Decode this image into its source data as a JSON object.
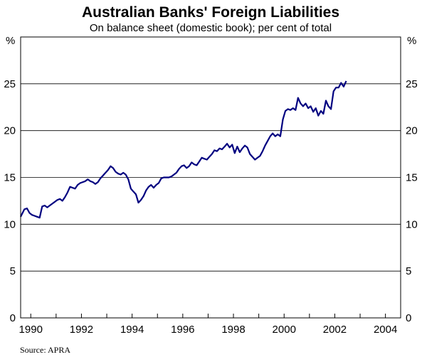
{
  "chart_data": {
    "type": "line",
    "title": "Australian Banks' Foreign Liabilities",
    "subtitle": "On balance sheet (domestic book); per cent of total",
    "unit_left": "%",
    "unit_right": "%",
    "source": "Source: APRA",
    "xlim": [
      1989.6,
      2004.6
    ],
    "ylim": [
      0,
      30
    ],
    "x_ticks": [
      1990,
      1992,
      1994,
      1996,
      1998,
      2000,
      2002,
      2004
    ],
    "x_tick_labels": [
      "1990",
      "1992",
      "1994",
      "1996",
      "1998",
      "2000",
      "2002",
      "2004"
    ],
    "y_ticks": [
      0,
      5,
      10,
      15,
      20,
      25
    ],
    "y_tick_labels": [
      "0",
      "5",
      "10",
      "15",
      "20",
      "25"
    ],
    "grid": true,
    "line_color": "#000080",
    "series": [
      {
        "name": "",
        "x": [
          1989.6,
          1989.75,
          1989.85,
          1989.95,
          1990.05,
          1990.15,
          1990.25,
          1990.35,
          1990.45,
          1990.55,
          1990.65,
          1990.75,
          1990.85,
          1990.95,
          1991.05,
          1991.15,
          1991.25,
          1991.35,
          1991.45,
          1991.55,
          1991.65,
          1991.75,
          1991.85,
          1991.95,
          1992.05,
          1992.15,
          1992.25,
          1992.35,
          1992.45,
          1992.55,
          1992.65,
          1992.75,
          1992.85,
          1992.95,
          1993.05,
          1993.15,
          1993.25,
          1993.35,
          1993.45,
          1993.55,
          1993.65,
          1993.75,
          1993.85,
          1993.95,
          1994.05,
          1994.15,
          1994.25,
          1994.35,
          1994.45,
          1994.55,
          1994.65,
          1994.75,
          1994.85,
          1994.95,
          1995.05,
          1995.15,
          1995.25,
          1995.35,
          1995.45,
          1995.55,
          1995.65,
          1995.75,
          1995.85,
          1995.95,
          1996.05,
          1996.15,
          1996.25,
          1996.35,
          1996.45,
          1996.55,
          1996.65,
          1996.75,
          1996.85,
          1996.95,
          1997.05,
          1997.15,
          1997.25,
          1997.35,
          1997.45,
          1997.55,
          1997.65,
          1997.75,
          1997.85,
          1997.95,
          1998.05,
          1998.15,
          1998.25,
          1998.35,
          1998.45,
          1998.55,
          1998.65,
          1998.75,
          1998.85,
          1998.95,
          1999.05,
          1999.15,
          1999.25,
          1999.35,
          1999.45,
          1999.55,
          1999.65,
          1999.75,
          1999.85,
          1999.95,
          2000.05,
          2000.15,
          2000.25,
          2000.35,
          2000.45,
          2000.55,
          2000.65,
          2000.75,
          2000.85,
          2000.95,
          2001.05,
          2001.15,
          2001.25,
          2001.35,
          2001.45,
          2001.55,
          2001.65,
          2001.75,
          2001.85,
          2001.95,
          2002.05,
          2002.15,
          2002.25,
          2002.35,
          2002.45
        ],
        "values": [
          10.8,
          11.6,
          11.7,
          11.2,
          11.0,
          10.9,
          10.8,
          10.7,
          11.9,
          12.0,
          11.8,
          12.0,
          12.2,
          12.4,
          12.6,
          12.7,
          12.5,
          12.9,
          13.4,
          14.0,
          13.9,
          13.8,
          14.2,
          14.4,
          14.5,
          14.6,
          14.8,
          14.6,
          14.5,
          14.3,
          14.5,
          14.9,
          15.2,
          15.5,
          15.8,
          16.2,
          16.0,
          15.6,
          15.4,
          15.3,
          15.5,
          15.3,
          14.8,
          13.8,
          13.5,
          13.2,
          12.3,
          12.6,
          13.0,
          13.6,
          14.0,
          14.2,
          13.9,
          14.2,
          14.4,
          14.9,
          15.0,
          15.0,
          15.0,
          15.1,
          15.3,
          15.5,
          15.9,
          16.2,
          16.3,
          16.0,
          16.2,
          16.6,
          16.4,
          16.3,
          16.7,
          17.1,
          17.0,
          16.9,
          17.2,
          17.5,
          17.9,
          17.8,
          18.1,
          18.0,
          18.3,
          18.6,
          18.2,
          18.5,
          17.6,
          18.3,
          17.7,
          18.1,
          18.4,
          18.2,
          17.5,
          17.2,
          16.9,
          17.1,
          17.3,
          17.8,
          18.4,
          18.9,
          19.4,
          19.7,
          19.4,
          19.6,
          19.4,
          21.2,
          22.1,
          22.3,
          22.2,
          22.4,
          22.2,
          23.5,
          22.9,
          22.6,
          22.9,
          22.4,
          22.6,
          22.0,
          22.4,
          21.6,
          22.1,
          21.8,
          23.2,
          22.6,
          22.3,
          24.2,
          24.6,
          24.6,
          25.1,
          24.7,
          25.3
        ]
      }
    ]
  }
}
